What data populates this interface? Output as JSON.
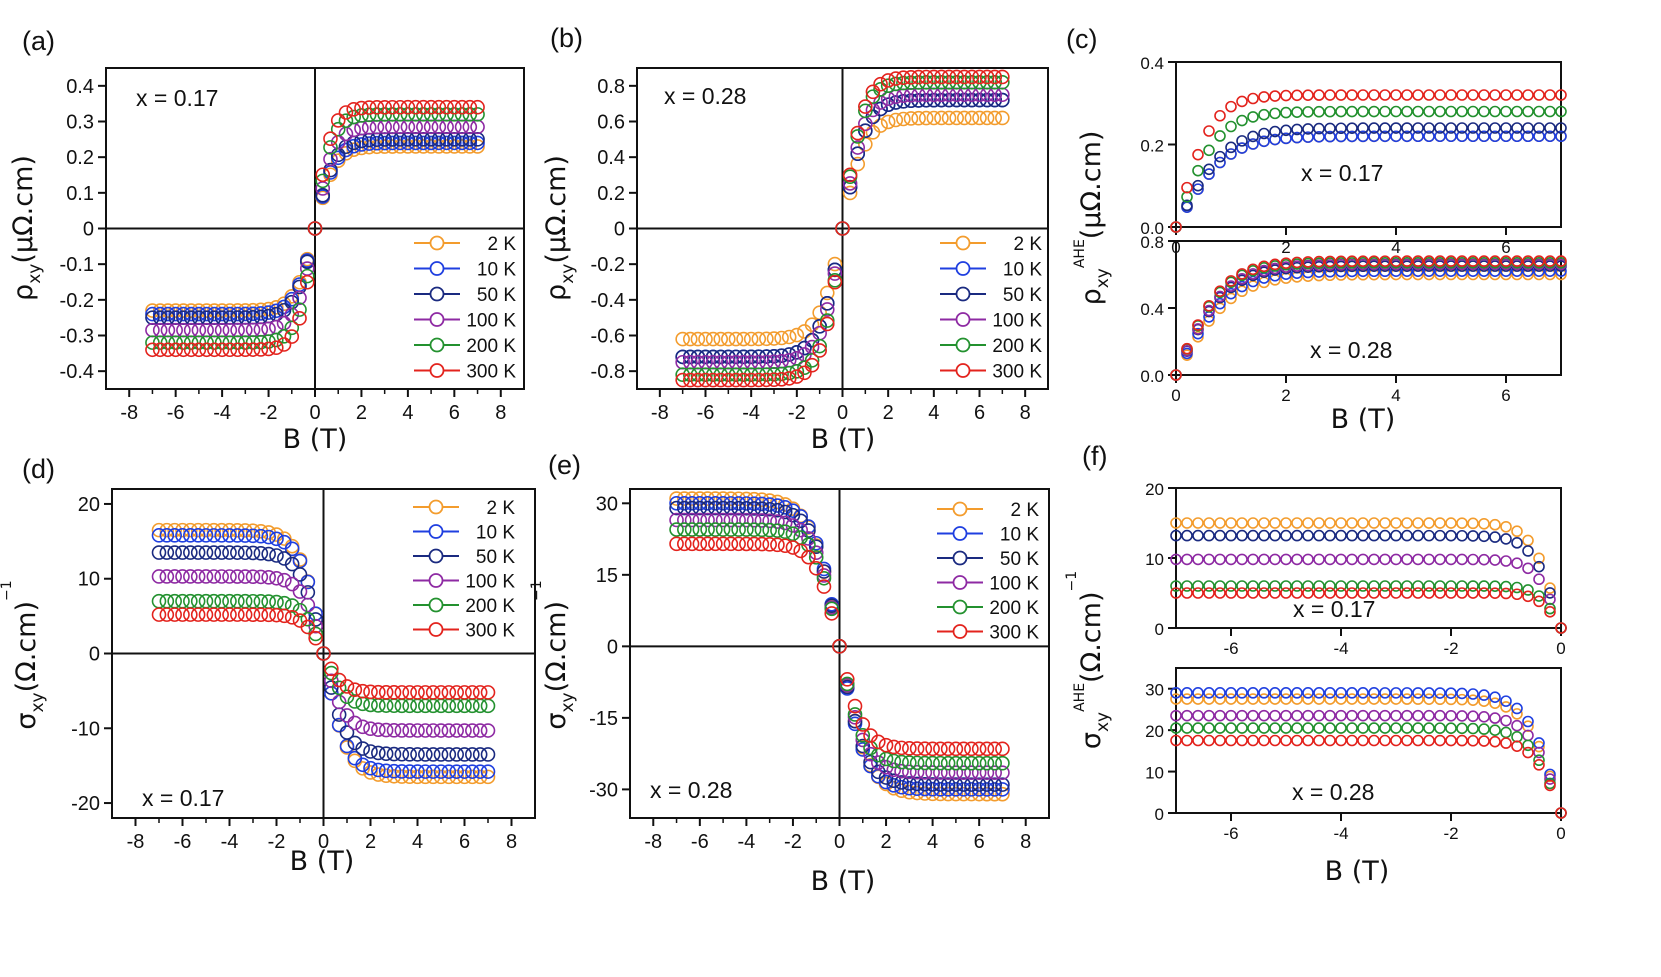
{
  "figure": {
    "colors": {
      "2 K": "#F39C2D",
      "10 K": "#1F3FE0",
      "50 K": "#1A2A80",
      "100 K": "#8E2AA3",
      "200 K": "#23912F",
      "300 K": "#E3231D"
    }
  },
  "chart_data": [
    {
      "id": "a",
      "panel_label": "(a)",
      "type": "scatter",
      "annotation": "x = 0.17",
      "xlabel": "B (T)",
      "ylabel": "ρxy(μΩ.cm)",
      "xlim": [
        -9,
        9
      ],
      "ylim": [
        -0.45,
        0.45
      ],
      "xticks": [
        "-8",
        "-6",
        "-4",
        "-2",
        "0",
        "2",
        "4",
        "6",
        "8"
      ],
      "yticks": [
        "0.4",
        "0.3",
        "0.2",
        "0.1",
        "0",
        "-0.1",
        "-0.2",
        "-0.3",
        "-0.4"
      ],
      "legend": [
        "2 K",
        "10 K",
        "50 K",
        "100 K",
        "200 K",
        "300 K"
      ],
      "series_params": [
        {
          "name": "2 K",
          "sat": 0.23,
          "width": 0.85
        },
        {
          "name": "10 K",
          "sat": 0.24,
          "width": 0.85
        },
        {
          "name": "50 K",
          "sat": 0.25,
          "width": 0.85
        },
        {
          "name": "100 K",
          "sat": 0.285,
          "width": 0.8
        },
        {
          "name": "200 K",
          "sat": 0.32,
          "width": 0.75
        },
        {
          "name": "300 K",
          "sat": 0.34,
          "width": 0.7
        }
      ]
    },
    {
      "id": "b",
      "panel_label": "(b)",
      "type": "scatter",
      "annotation": "x = 0.28",
      "xlabel": "B (T)",
      "ylabel": "ρxy(μΩ.cm)",
      "xlim": [
        -9,
        9
      ],
      "ylim": [
        -0.9,
        0.9
      ],
      "xticks": [
        "-8",
        "-6",
        "-4",
        "-2",
        "0",
        "2",
        "4",
        "6",
        "8"
      ],
      "yticks": [
        "0.8",
        "0.6",
        "0.4",
        "0.2",
        "0",
        "-0.2",
        "-0.4",
        "-0.6",
        "-0.8"
      ],
      "legend": [
        "2 K",
        "10 K",
        "50 K",
        "100 K",
        "200 K",
        "300 K"
      ],
      "series_params": [
        {
          "name": "2 K",
          "sat": 0.62,
          "width": 1.0
        },
        {
          "name": "10 K",
          "sat": 0.72,
          "width": 1.0
        },
        {
          "name": "50 K",
          "sat": 0.72,
          "width": 1.0
        },
        {
          "name": "100 K",
          "sat": 0.75,
          "width": 0.95
        },
        {
          "name": "200 K",
          "sat": 0.82,
          "width": 0.9
        },
        {
          "name": "300 K",
          "sat": 0.85,
          "width": 0.9
        }
      ]
    },
    {
      "id": "c-top",
      "panel_label": "(c)",
      "type": "scatter",
      "annotation": "x = 0.17",
      "xlabel": "",
      "ylabel": "ρxy AHE(μΩ.cm)",
      "xlim": [
        0,
        7
      ],
      "ylim": [
        0,
        0.4
      ],
      "xticks": [
        "0",
        "2",
        "4",
        "6"
      ],
      "yticks": [
        "0.4",
        "0.2",
        "0.0"
      ],
      "series_params": [
        {
          "name": "2 K",
          "sat": 0.22,
          "width": 0.9
        },
        {
          "name": "10 K",
          "sat": 0.22,
          "width": 0.9
        },
        {
          "name": "50 K",
          "sat": 0.24,
          "width": 0.9
        },
        {
          "name": "200 K",
          "sat": 0.28,
          "width": 0.75
        },
        {
          "name": "300 K",
          "sat": 0.32,
          "width": 0.65
        }
      ]
    },
    {
      "id": "c-bottom",
      "type": "scatter",
      "annotation": "x = 0.28",
      "xlabel": "B (T)",
      "ylabel": "",
      "xlim": [
        0,
        7
      ],
      "ylim": [
        0,
        0.8
      ],
      "xticks": [
        "0",
        "2",
        "4",
        "6"
      ],
      "yticks": [
        "0.8",
        "0.4",
        "0.0"
      ],
      "series_params": [
        {
          "name": "2 K",
          "sat": 0.6,
          "width": 1.0
        },
        {
          "name": "10 K",
          "sat": 0.62,
          "width": 0.95
        },
        {
          "name": "50 K",
          "sat": 0.65,
          "width": 0.9
        },
        {
          "name": "100 K",
          "sat": 0.66,
          "width": 0.9
        },
        {
          "name": "200 K",
          "sat": 0.67,
          "width": 0.85
        },
        {
          "name": "300 K",
          "sat": 0.68,
          "width": 0.85
        }
      ]
    },
    {
      "id": "d",
      "panel_label": "(d)",
      "type": "scatter",
      "annotation": "x = 0.17",
      "xlabel": "B (T)",
      "ylabel": "σxy(Ω.cm)⁻¹",
      "xlim": [
        -9,
        9
      ],
      "ylim": [
        -22,
        22
      ],
      "xticks": [
        "-8",
        "-6",
        "-4",
        "-2",
        "0",
        "2",
        "4",
        "6",
        "8"
      ],
      "yticks": [
        "20",
        "10",
        "0",
        "-10",
        "-20"
      ],
      "legend": [
        "2 K",
        "10 K",
        "50 K",
        "100 K",
        "200 K",
        "300 K"
      ],
      "series_params": [
        {
          "name": "2 K",
          "sat": -16.5,
          "width": 1.0
        },
        {
          "name": "10 K",
          "sat": -15.8,
          "width": 0.95
        },
        {
          "name": "50 K",
          "sat": -13.5,
          "width": 0.95
        },
        {
          "name": "100 K",
          "sat": -10.3,
          "width": 0.9
        },
        {
          "name": "200 K",
          "sat": -7.0,
          "width": 0.85
        },
        {
          "name": "300 K",
          "sat": -5.2,
          "width": 0.8
        }
      ]
    },
    {
      "id": "e",
      "panel_label": "(e)",
      "type": "scatter",
      "annotation": "x = 0.28",
      "xlabel": "B (T)",
      "ylabel": "σxy(Ω.cm)⁻¹",
      "xlim": [
        -9,
        9
      ],
      "ylim": [
        -36,
        33
      ],
      "xticks": [
        "-8",
        "-6",
        "-4",
        "-2",
        "0",
        "2",
        "4",
        "6",
        "8"
      ],
      "yticks": [
        "30",
        "15",
        "0",
        "-15",
        "-30"
      ],
      "legend": [
        "2 K",
        "10 K",
        "50 K",
        "100 K",
        "200 K",
        "300 K"
      ],
      "series_params": [
        {
          "name": "2 K",
          "sat": -31.0,
          "width": 1.2
        },
        {
          "name": "10 K",
          "sat": -30.0,
          "width": 1.1
        },
        {
          "name": "50 K",
          "sat": -29.0,
          "width": 1.1
        },
        {
          "name": "100 K",
          "sat": -26.5,
          "width": 1.05
        },
        {
          "name": "200 K",
          "sat": -24.5,
          "width": 1.0
        },
        {
          "name": "300 K",
          "sat": -21.5,
          "width": 1.0
        }
      ]
    },
    {
      "id": "f-top",
      "panel_label": "(f)",
      "type": "scatter",
      "annotation": "x = 0.17",
      "xlabel": "",
      "ylabel": "σxy AHE(Ω.cm)⁻¹",
      "xlim": [
        -7,
        0
      ],
      "ylim": [
        0,
        20
      ],
      "xticks": [
        "-6",
        "-4",
        "-2",
        "0"
      ],
      "yticks": [
        "20",
        "10",
        "0"
      ],
      "series_params": [
        {
          "name": "2 K",
          "sat": 15.0,
          "width": 0.5
        },
        {
          "name": "50 K",
          "sat": 13.2,
          "width": 0.5
        },
        {
          "name": "100 K",
          "sat": 9.8,
          "width": 0.45
        },
        {
          "name": "200 K",
          "sat": 6.0,
          "width": 0.4
        },
        {
          "name": "300 K",
          "sat": 5.0,
          "width": 0.4
        }
      ]
    },
    {
      "id": "f-bottom",
      "type": "scatter",
      "annotation": "x = 0.28",
      "xlabel": "B (T)",
      "ylabel": "",
      "xlim": [
        -7,
        0
      ],
      "ylim": [
        0,
        35
      ],
      "xticks": [
        "-6",
        "-4",
        "-2",
        "0"
      ],
      "yticks": [
        "30",
        "20",
        "10",
        "0"
      ],
      "series_params": [
        {
          "name": "2 K",
          "sat": 27.5,
          "width": 0.6
        },
        {
          "name": "10 K",
          "sat": 29.0,
          "width": 0.6
        },
        {
          "name": "100 K",
          "sat": 23.5,
          "width": 0.55
        },
        {
          "name": "200 K",
          "sat": 20.5,
          "width": 0.55
        },
        {
          "name": "300 K",
          "sat": 17.5,
          "width": 0.5
        }
      ]
    }
  ]
}
